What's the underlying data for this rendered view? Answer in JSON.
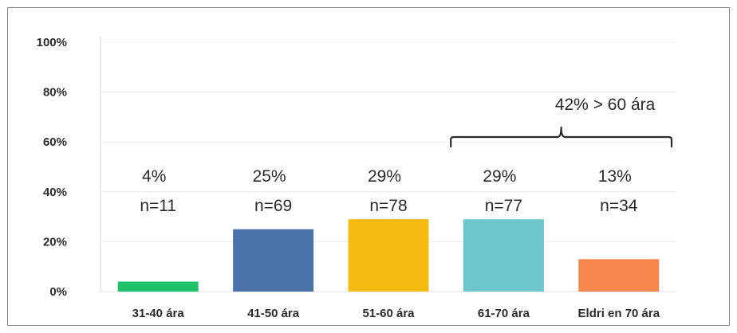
{
  "chart_data": {
    "type": "bar",
    "categories": [
      "31-40 ára",
      "41-50 ára",
      "51-60 ára",
      "61-70 ára",
      "Eldri en 70 ára"
    ],
    "values": [
      4,
      25,
      29,
      29,
      13
    ],
    "percent_labels": [
      "4%",
      "25%",
      "29%",
      "29%",
      "13%"
    ],
    "n_labels": [
      "n=11",
      "n=69",
      "n=78",
      "n=77",
      "n=34"
    ],
    "colors": [
      "#1fc16a",
      "#4a72a8",
      "#f6bb12",
      "#6cc6cb",
      "#f6884e"
    ],
    "yticks": [
      "0%",
      "20%",
      "40%",
      "60%",
      "80%",
      "100%"
    ],
    "ylim": [
      0,
      100
    ],
    "grid": true,
    "annotation": {
      "text": "42% > 60 ára",
      "spans_categories": [
        3,
        4
      ]
    }
  }
}
